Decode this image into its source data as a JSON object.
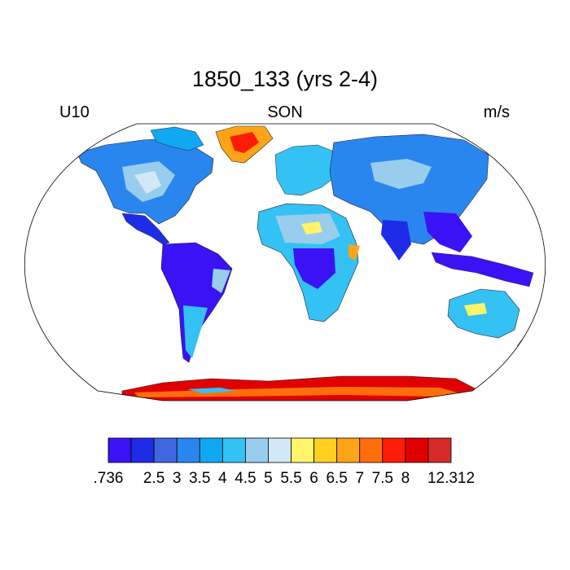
{
  "header": {
    "title": "1850_133 (yrs 2-4)",
    "left_label": "U10",
    "center_label": "SON",
    "right_label": "m/s"
  },
  "map": {
    "projection": "Robinson",
    "field": "U10",
    "land_only": true,
    "summary": {
      "high_wind_regions": [
        "Greenland",
        "Antarctica",
        "Horn of Africa",
        "Tibetan Plateau edge"
      ],
      "low_wind_regions": [
        "Amazon",
        "Congo Basin",
        "Maritime Continent",
        "Southeast Asia"
      ]
    }
  },
  "colorbar": {
    "colors": [
      "#3b12f5",
      "#1e2ce8",
      "#3f68e0",
      "#2a86ef",
      "#10a8f2",
      "#34c1f4",
      "#98cdee",
      "#d2e8f6",
      "#fff46a",
      "#ffcf22",
      "#ffa417",
      "#ff6e0b",
      "#ff1c07",
      "#e10000",
      "#d62a2a"
    ],
    "labels": [
      ".736",
      "2.5",
      "3",
      "3.5",
      "4",
      "4.5",
      "5",
      "5.5",
      "6",
      "6.5",
      "7",
      "7.5",
      "8",
      "12.312"
    ]
  }
}
